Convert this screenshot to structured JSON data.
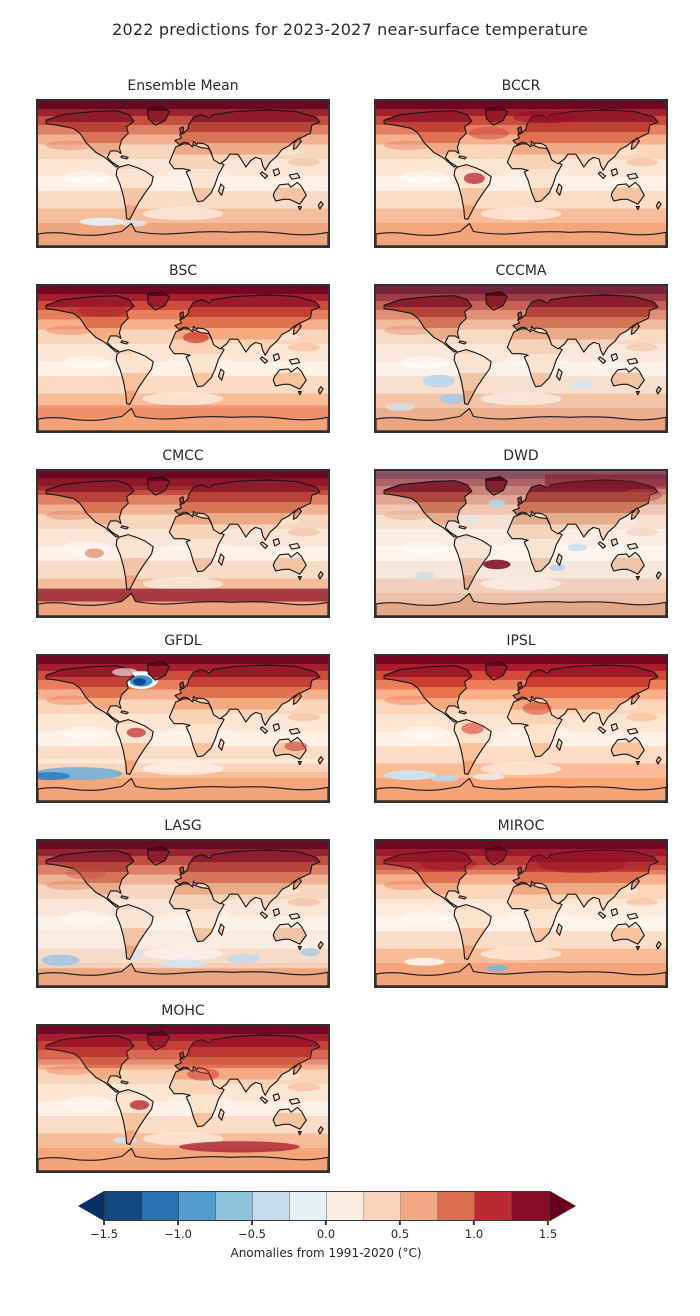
{
  "figure": {
    "title": "2022 predictions for 2023-2027 near-surface temperature",
    "background": "#ffffff"
  },
  "panels": [
    {
      "label": "Ensemble Mean"
    },
    {
      "label": "BCCR"
    },
    {
      "label": "BSC"
    },
    {
      "label": "CCCMA"
    },
    {
      "label": "CMCC"
    },
    {
      "label": "DWD"
    },
    {
      "label": "GFDL"
    },
    {
      "label": "IPSL"
    },
    {
      "label": "LASG"
    },
    {
      "label": "MIROC"
    },
    {
      "label": "MOHC"
    }
  ],
  "colorbar": {
    "ticks": [
      "−1.5",
      "−1.0",
      "−0.5",
      "0.0",
      "0.5",
      "1.0",
      "1.5"
    ],
    "label": "Anomalies from 1991-2020 (°C)",
    "segment_colors": [
      "#12497f",
      "#2a71b2",
      "#539ecc",
      "#8fc3dc",
      "#c5dcec",
      "#e9f0f4",
      "#faece3",
      "#f9d4bc",
      "#f3a683",
      "#dc6d51",
      "#bb2a33",
      "#8a0b25"
    ],
    "extend_left_color": "#053061",
    "extend_right_color": "#67001f"
  },
  "chart_data": {
    "type": "heatmap",
    "subtype": "multi-panel filled-contour global anomaly maps (equirectangular projection)",
    "title": "2022 predictions for 2023-2027 near-surface temperature",
    "panels": [
      {
        "name": "Ensemble Mean",
        "notable": "strong Arctic warming band ~1.5°C; warm (~0.25-0.75°C) elsewhere; near-zero Southern Ocean"
      },
      {
        "name": "BCCR",
        "notable": "similar to ensemble mean with darker Amazon and North Atlantic warming"
      },
      {
        "name": "BSC",
        "notable": "uniformly warm; strong Sahara and Arctic warming; warm band near 60S"
      },
      {
        "name": "CCCMA",
        "notable": "weak cool patches in SE Pacific and southern Indian Ocean"
      },
      {
        "name": "CMCC",
        "notable": "dark warm bands at both Arctic and ~60S Southern Ocean"
      },
      {
        "name": "DWD",
        "notable": "lightest panel; scattered weak cool patches; strong warm blob in South Atlantic; strong Siberian Arctic warming"
      },
      {
        "name": "GFDL",
        "notable": "distinct cold blob (< -1°C) south of Greenland in North Atlantic; cool band in Southern Ocean"
      },
      {
        "name": "IPSL",
        "notable": "saturated warm overall; slight cool streak near Antarctic coast at left"
      },
      {
        "name": "LASG",
        "notable": "cooler/neutral Southern Hemisphere oceans with weak blue patches near 60S"
      },
      {
        "name": "MIROC",
        "notable": "very strong pan-Arctic and northern continents warming; small cool patch at Antarctic coast"
      },
      {
        "name": "MOHC",
        "notable": "strong northern continent warming; dark warm band near 60S at right; small cool patch near Drake Passage"
      }
    ],
    "colorbar": {
      "ticks": [
        -1.5,
        -1.0,
        -0.5,
        0.0,
        0.5,
        1.0,
        1.5
      ],
      "boundary_step": 0.25,
      "n_segments": 12,
      "range": [
        -1.5,
        1.5
      ],
      "extend": "both",
      "cmap": "RdBu_r",
      "label": "Anomalies from 1991-2020 (°C)",
      "orientation": "horizontal",
      "position": "bottom"
    },
    "layout": {
      "rows": 6,
      "cols": 2,
      "last_row_cols": 1,
      "grid_off": true,
      "axes_ticks": "none"
    }
  }
}
